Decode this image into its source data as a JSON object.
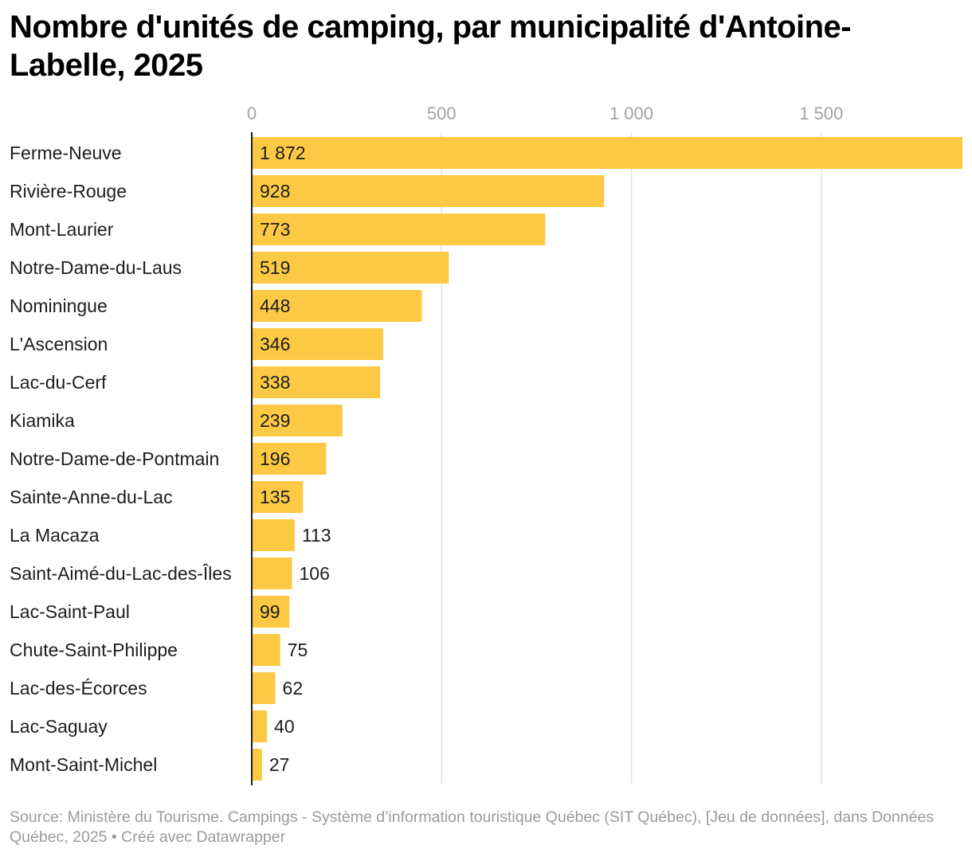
{
  "title": "Nombre d'unités de camping, par municipalité d'Antoine-Labelle, 2025",
  "source": "Source: Ministère du Tourisme. Campings - Système d’information touristique Québec (SIT Québec), [Jeu de données], dans Données Québec, 2025 • Créé avec Datawrapper",
  "chart_data": {
    "type": "bar",
    "orientation": "horizontal",
    "title": "Nombre d'unités de camping, par municipalité d'Antoine-Labelle, 2025",
    "xlabel": "",
    "ylabel": "",
    "xlim": [
      0,
      1872
    ],
    "x_ticks": [
      0,
      500,
      1000,
      1500
    ],
    "x_tick_labels": [
      "0",
      "500",
      "1 000",
      "1 500"
    ],
    "grid": true,
    "bar_color": "#fbc943",
    "categories": [
      "Ferme-Neuve",
      "Rivière-Rouge",
      "Mont-Laurier",
      "Notre-Dame-du-Laus",
      "Nominingue",
      "L'Ascension",
      "Lac-du-Cerf",
      "Kiamika",
      "Notre-Dame-de-Pontmain",
      "Sainte-Anne-du-Lac",
      "La Macaza",
      "Saint-Aimé-du-Lac-des-Îles",
      "Lac-Saint-Paul",
      "Chute-Saint-Philippe",
      "Lac-des-Écorces",
      "Lac-Saguay",
      "Mont-Saint-Michel"
    ],
    "values": [
      1872,
      928,
      773,
      519,
      448,
      346,
      338,
      239,
      196,
      135,
      113,
      106,
      99,
      75,
      62,
      40,
      27
    ],
    "value_labels": [
      "1 872",
      "928",
      "773",
      "519",
      "448",
      "346",
      "338",
      "239",
      "196",
      "135",
      "113",
      "106",
      "99",
      "75",
      "62",
      "40",
      "27"
    ]
  }
}
